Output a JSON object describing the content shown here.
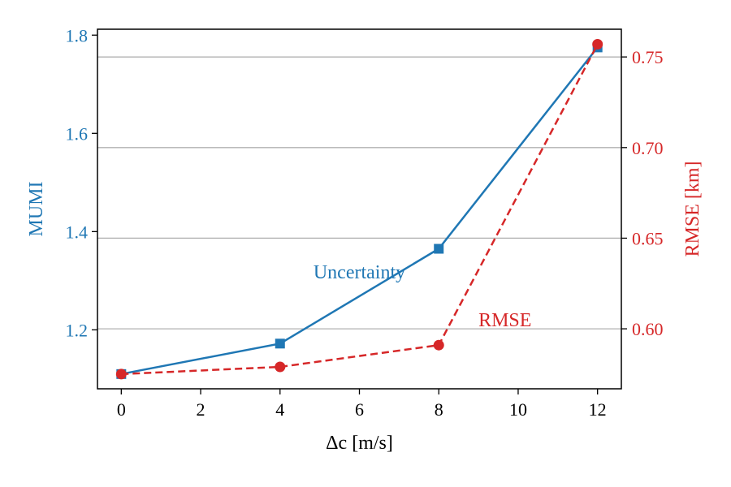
{
  "chart_data": {
    "type": "line",
    "x": [
      0,
      4,
      8,
      12
    ],
    "xlabel": "Δc [m/s]",
    "xlim": [
      -0.6,
      12.6
    ],
    "xticks": [
      0,
      2,
      4,
      6,
      8,
      10,
      12
    ],
    "xtick_labels": [
      "0",
      "2",
      "4",
      "6",
      "8",
      "10",
      "12"
    ],
    "grid": "horizontal (right axis)",
    "series": [
      {
        "name": "Uncertainty",
        "axis": "left",
        "values": [
          1.11,
          1.172,
          1.365,
          1.775
        ],
        "color": "#1f77b4",
        "linestyle": "solid",
        "marker": "square"
      },
      {
        "name": "RMSE",
        "axis": "right",
        "values": [
          0.575,
          0.579,
          0.591,
          0.757
        ],
        "color": "#d62728",
        "linestyle": "dashed",
        "marker": "circle"
      }
    ],
    "left_axis": {
      "label": "MUMI",
      "ylim": [
        1.08,
        1.812
      ],
      "ticks": [
        1.2,
        1.4,
        1.6,
        1.8
      ],
      "tick_labels": [
        "1.2",
        "1.4",
        "1.6",
        "1.8"
      ],
      "color": "#1f77b4"
    },
    "right_axis": {
      "label": "RMSE [km]",
      "ylim": [
        0.5669,
        0.7653
      ],
      "ticks": [
        0.6,
        0.65,
        0.7,
        0.75
      ],
      "tick_labels": [
        "0.60",
        "0.65",
        "0.70",
        "0.75"
      ],
      "color": "#d62728"
    },
    "annotations": [
      {
        "text": "Uncertainty",
        "x": 6.0,
        "y_left": 1.3,
        "color": "#1f77b4"
      },
      {
        "text": "RMSE",
        "x": 9.0,
        "y_right": 0.6,
        "color": "#d62728"
      }
    ]
  }
}
